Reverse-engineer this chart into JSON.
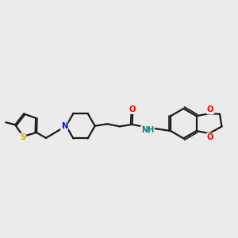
{
  "bg_color": "#ebebeb",
  "bond_color": "#1a1a1a",
  "bond_width": 1.6,
  "atom_colors": {
    "S": "#c8b400",
    "N": "#0000ee",
    "O": "#ee0000",
    "NH": "#008080",
    "C": "#1a1a1a"
  },
  "fontsize": 7.0
}
